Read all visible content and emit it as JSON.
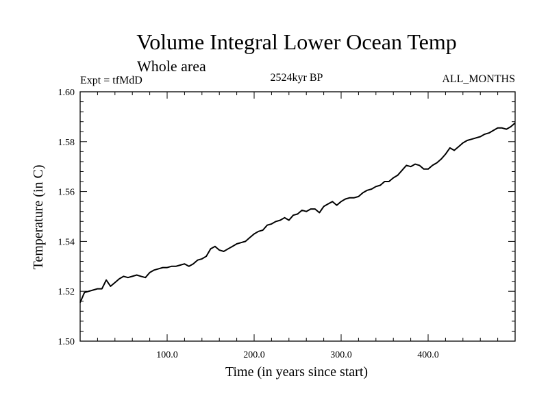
{
  "chart_data": {
    "type": "line",
    "title": "Volume Integral Lower Ocean Temp",
    "subtitle": "Whole area",
    "left_annotation": "Expt = tfMdD",
    "center_annotation": "2524kyr BP",
    "right_annotation": "ALL_MONTHS",
    "xlabel": "Time (in years since start)",
    "ylabel": "Temperature (in C)",
    "xlim": [
      0,
      500
    ],
    "ylim": [
      1.5,
      1.6
    ],
    "x_ticks": [
      100,
      200,
      300,
      400
    ],
    "x_tick_labels": [
      "100.0",
      "200.0",
      "300.0",
      "400.0"
    ],
    "y_ticks": [
      1.5,
      1.52,
      1.54,
      1.56,
      1.58,
      1.6
    ],
    "y_tick_labels": [
      "1.50",
      "1.52",
      "1.54",
      "1.56",
      "1.58",
      "1.60"
    ],
    "grid": false,
    "series": [
      {
        "name": "Volume Integral Lower Ocean Temp",
        "x": [
          0,
          5,
          10,
          15,
          20,
          25,
          30,
          35,
          40,
          45,
          50,
          55,
          60,
          65,
          70,
          75,
          80,
          85,
          90,
          95,
          100,
          105,
          110,
          115,
          120,
          125,
          130,
          135,
          140,
          145,
          150,
          155,
          160,
          165,
          170,
          175,
          180,
          185,
          190,
          195,
          200,
          205,
          210,
          215,
          220,
          225,
          230,
          235,
          240,
          245,
          250,
          255,
          260,
          265,
          270,
          275,
          280,
          285,
          290,
          295,
          300,
          305,
          310,
          315,
          320,
          325,
          330,
          335,
          340,
          345,
          350,
          355,
          360,
          365,
          370,
          375,
          380,
          385,
          390,
          395,
          400,
          405,
          410,
          415,
          420,
          425,
          430,
          435,
          440,
          445,
          450,
          455,
          460,
          465,
          470,
          475,
          480,
          485,
          490,
          495,
          500
        ],
        "values": [
          1.5155,
          1.5195,
          1.52,
          1.5205,
          1.521,
          1.521,
          1.5245,
          1.522,
          1.5235,
          1.525,
          1.526,
          1.5255,
          1.526,
          1.5265,
          1.526,
          1.5255,
          1.5275,
          1.5285,
          1.529,
          1.5295,
          1.5295,
          1.53,
          1.53,
          1.5305,
          1.531,
          1.53,
          1.531,
          1.5325,
          1.533,
          1.534,
          1.537,
          1.538,
          1.5365,
          1.536,
          1.537,
          1.538,
          1.539,
          1.5395,
          1.54,
          1.5415,
          1.543,
          1.544,
          1.5445,
          1.5465,
          1.547,
          1.548,
          1.5485,
          1.5495,
          1.5485,
          1.5505,
          1.551,
          1.5525,
          1.552,
          1.553,
          1.553,
          1.5515,
          1.554,
          1.555,
          1.556,
          1.5545,
          1.556,
          1.557,
          1.5575,
          1.5575,
          1.558,
          1.5595,
          1.5605,
          1.561,
          1.562,
          1.5625,
          1.564,
          1.564,
          1.5655,
          1.5665,
          1.5685,
          1.5705,
          1.57,
          1.571,
          1.5705,
          1.569,
          1.569,
          1.5705,
          1.5715,
          1.573,
          1.575,
          1.5775,
          1.5765,
          1.578,
          1.5795,
          1.5805,
          1.581,
          1.5815,
          1.582,
          1.583,
          1.5835,
          1.5845,
          1.5855,
          1.5855,
          1.585,
          1.586,
          1.5875
        ]
      }
    ]
  }
}
